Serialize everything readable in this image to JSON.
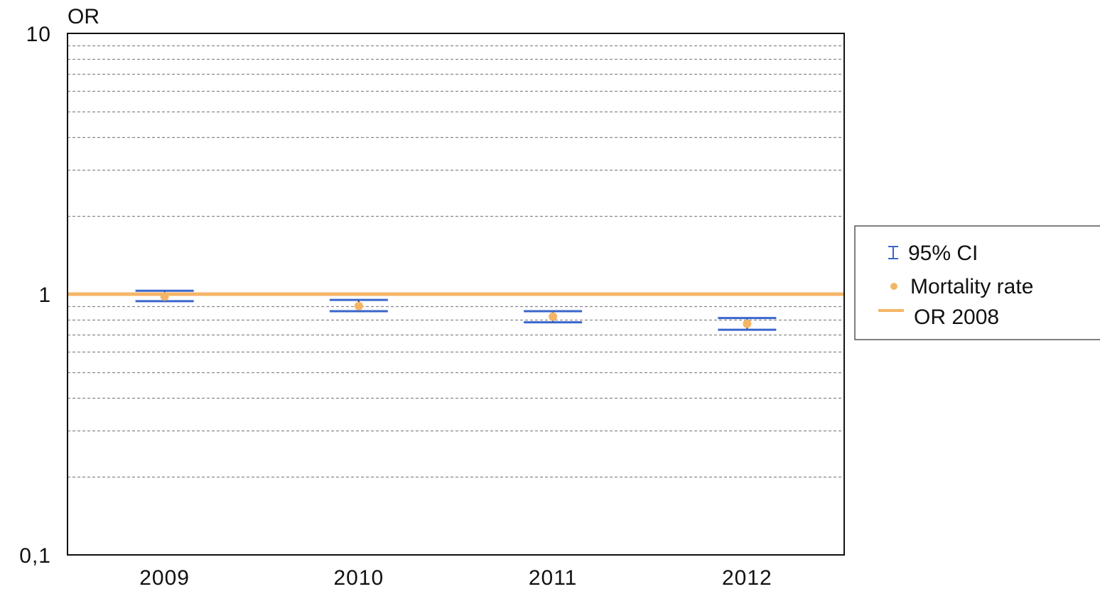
{
  "chart_data": {
    "type": "scatter",
    "ylabel": "OR",
    "yscale": "log",
    "ylim": [
      0.1,
      10
    ],
    "y_tick_labels": [
      {
        "value": 10,
        "label": "10"
      },
      {
        "value": 1,
        "label": "1"
      },
      {
        "value": 0.1,
        "label": "0,1"
      }
    ],
    "categories": [
      "2009",
      "2010",
      "2011",
      "2012"
    ],
    "series": [
      {
        "name": "Mortality rate",
        "values": [
          0.98,
          0.9,
          0.82,
          0.77
        ],
        "ci_lower": [
          0.94,
          0.86,
          0.78,
          0.73
        ],
        "ci_upper": [
          1.03,
          0.95,
          0.86,
          0.81
        ]
      }
    ],
    "reference_line": {
      "name": "OR 2008",
      "value": 1
    },
    "grid": "horizontal dotted at log minor ticks",
    "legend": {
      "position": "right",
      "entries": [
        "95% CI",
        "Mortality rate",
        "OR 2008"
      ]
    },
    "colors": {
      "ci": "#3a66cc",
      "point": "#f5b567",
      "reference": "#f5b567",
      "grid": "#888888",
      "frame": "#111111"
    }
  }
}
